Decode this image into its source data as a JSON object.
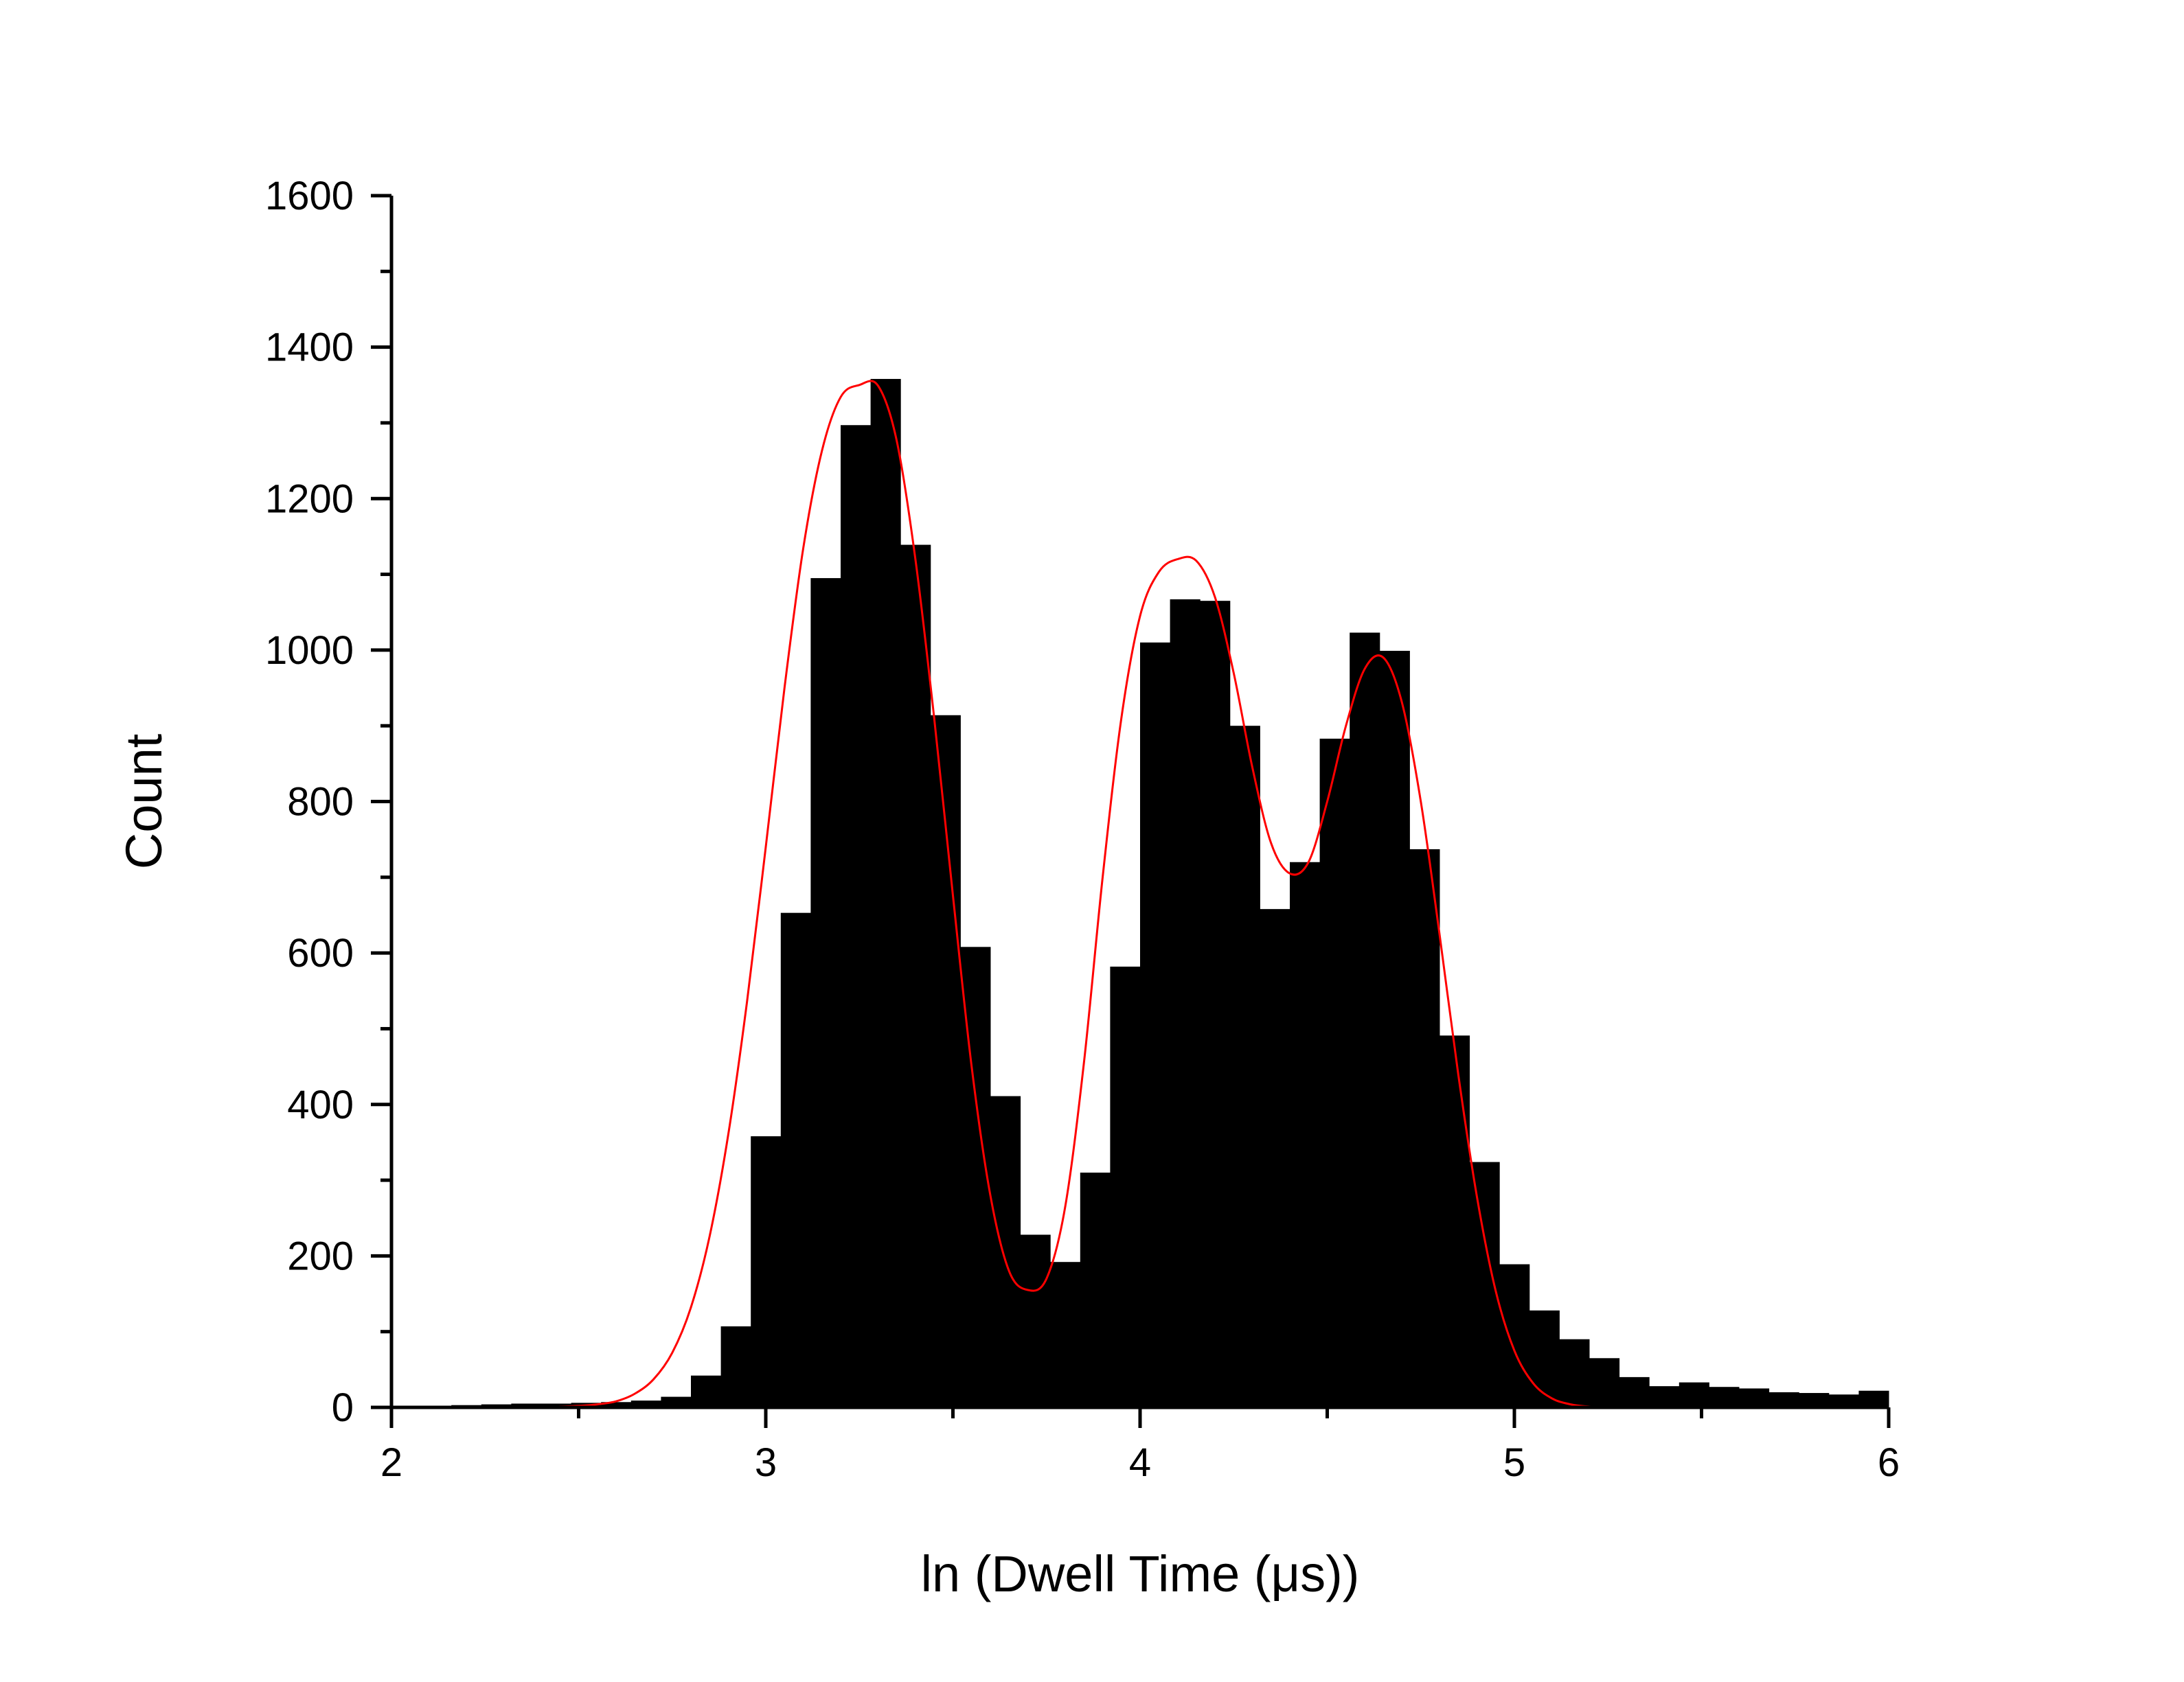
{
  "chart_data": {
    "type": "bar",
    "subtype": "histogram",
    "title": "",
    "xlabel": "ln (Dwell Time (μs))",
    "ylabel": "Count",
    "xlim": [
      2,
      6
    ],
    "ylim": [
      0,
      1600
    ],
    "x_ticks": [
      "2",
      "3",
      "4",
      "5",
      "6"
    ],
    "y_ticks": [
      "0",
      "200",
      "400",
      "600",
      "800",
      "1000",
      "1200",
      "1400",
      "1600"
    ],
    "grid": false,
    "legend": "none",
    "bin_width": 0.08,
    "bins": {
      "x_start": [
        2.0,
        2.08,
        2.16,
        2.24,
        2.32,
        2.4,
        2.48,
        2.56,
        2.64,
        2.72,
        2.8,
        2.88,
        2.96,
        3.04,
        3.12,
        3.2,
        3.28,
        3.36,
        3.44,
        3.52,
        3.6,
        3.68,
        3.76,
        3.84,
        3.92,
        4.0,
        4.08,
        4.16,
        4.24,
        4.32,
        4.4,
        4.48,
        4.56,
        4.64,
        4.72,
        4.8,
        4.88,
        4.96,
        5.04,
        5.12,
        5.2,
        5.28,
        5.36,
        5.44,
        5.52,
        5.6,
        5.68,
        5.76,
        5.84,
        5.92
      ],
      "counts": [
        2,
        2,
        3,
        4,
        5,
        5,
        6,
        7,
        9,
        14,
        42,
        107,
        358,
        653,
        1095,
        1297,
        1358,
        1139,
        914,
        608,
        411,
        228,
        192,
        310,
        582,
        1010,
        1067,
        1065,
        900,
        658,
        720,
        883,
        1023,
        999,
        737,
        491,
        324,
        189,
        128,
        90,
        65,
        40,
        28,
        33,
        27,
        25,
        20,
        19,
        17,
        22
      ]
    },
    "series": [
      {
        "type": "bar",
        "color": "#000000"
      },
      {
        "type": "line",
        "color": "#ff0000",
        "x": [
          2.0,
          2.05,
          2.1,
          2.15,
          2.2,
          2.25,
          2.3,
          2.35,
          2.4,
          2.45,
          2.5,
          2.55,
          2.6,
          2.65,
          2.7,
          2.75,
          2.8,
          2.85,
          2.9,
          2.95,
          3.0,
          3.05,
          3.1,
          3.15,
          3.2,
          3.25,
          3.3,
          3.35,
          3.4,
          3.45,
          3.5,
          3.55,
          3.6,
          3.65,
          3.7,
          3.75,
          3.8,
          3.85,
          3.9,
          3.95,
          4.0,
          4.05,
          4.1,
          4.15,
          4.2,
          4.25,
          4.3,
          4.35,
          4.4,
          4.45,
          4.5,
          4.55,
          4.6,
          4.65,
          4.7,
          4.75,
          4.8,
          4.85,
          4.9,
          4.95,
          5.0,
          5.05,
          5.1,
          5.15,
          5.2,
          5.25,
          5.3,
          5.35,
          5.4,
          5.45,
          5.5,
          5.55,
          5.6,
          5.65,
          5.7,
          5.75,
          5.8,
          5.85,
          5.9,
          5.95,
          6.0
        ],
        "y": [
          0,
          0,
          0,
          0,
          0,
          0,
          0,
          0,
          0,
          1,
          2,
          4,
          8,
          18,
          37,
          72,
          132,
          226,
          361,
          536,
          740,
          950,
          1134,
          1263,
          1334,
          1350,
          1349,
          1276,
          1119,
          910,
          676,
          450,
          280,
          180,
          155,
          170,
          265,
          455,
          700,
          910,
          1045,
          1103,
          1120,
          1118,
          1070,
          970,
          845,
          745,
          705,
          720,
          800,
          900,
          975,
          990,
          930,
          800,
          625,
          440,
          278,
          154,
          75,
          32,
          12,
          4,
          1,
          0,
          0,
          0,
          0,
          0,
          0,
          0,
          0,
          0,
          0,
          0,
          0,
          0,
          0,
          0,
          0
        ]
      }
    ]
  }
}
